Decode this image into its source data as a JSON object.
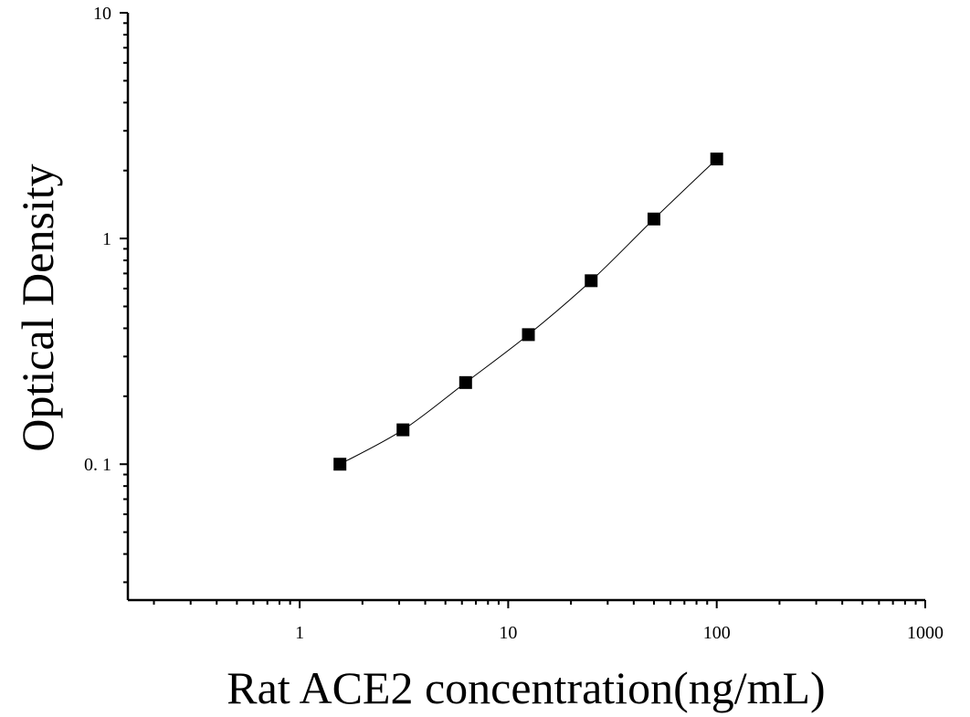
{
  "chart_data": {
    "type": "scatter",
    "title": "",
    "xlabel": "Rat ACE2 concentration(ng/mL)",
    "ylabel": "Optical Density",
    "xscale": "log",
    "yscale": "log",
    "xlim": [
      0.15,
      1000
    ],
    "ylim": [
      0.025,
      10
    ],
    "grid": false,
    "legend": "none",
    "x_tick_labels": [
      "1",
      "10",
      "100",
      "1000"
    ],
    "y_tick_labels": [
      "0. 1",
      "1",
      "10"
    ],
    "x_tick_values": [
      1,
      10,
      100,
      1000
    ],
    "y_tick_values": [
      0.1,
      1,
      10
    ],
    "series": [
      {
        "marker": "square",
        "color": "#000000",
        "x": [
          1.56,
          3.13,
          6.25,
          12.5,
          25,
          50,
          100
        ],
        "y": [
          0.1,
          0.142,
          0.23,
          0.375,
          0.65,
          1.22,
          2.25
        ],
        "fit_curve": true
      }
    ]
  }
}
